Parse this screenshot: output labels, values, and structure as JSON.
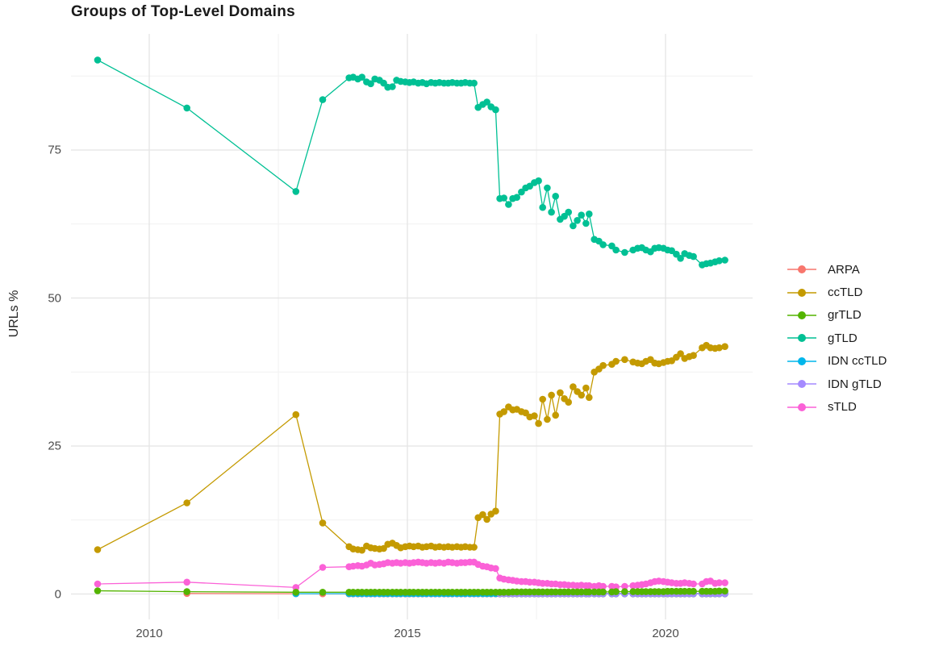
{
  "chart_data": {
    "type": "scatter",
    "title": "Groups of Top-Level Domains",
    "xlabel": "",
    "ylabel": "URLs %",
    "x_ticks": [
      "2010",
      "2015",
      "2020"
    ],
    "x_tick_values": [
      2010,
      2015,
      2020
    ],
    "x_minor_gridlines": [
      2012.5,
      2017.5
    ],
    "y_ticks": [
      "0",
      "25",
      "50",
      "75"
    ],
    "y_tick_values": [
      0,
      25,
      50,
      75
    ],
    "y_minor_gridlines": [
      12.5,
      37.5,
      62.5,
      87.5
    ],
    "xlim": [
      2008.48,
      2021.69
    ],
    "ylim": [
      -4.3,
      94.6
    ],
    "grid": true,
    "legend_position": "right",
    "style": {
      "background": "#ffffff",
      "grid_major_color": "#e4e4e4",
      "grid_minor_color": "#f1f1f1",
      "tick_label_color": "#4d4d4d",
      "title_color": "#1a1a1a",
      "axis_title_color": "#262626"
    },
    "dense_x": [
      2013.87,
      2013.95,
      2014.04,
      2014.12,
      2014.21,
      2014.29,
      2014.37,
      2014.46,
      2014.54,
      2014.62,
      2014.71,
      2014.79,
      2014.87,
      2014.96,
      2015.04,
      2015.12,
      2015.21,
      2015.29,
      2015.37,
      2015.46,
      2015.54,
      2015.62,
      2015.71,
      2015.79,
      2015.87,
      2015.96,
      2016.04,
      2016.12,
      2016.21,
      2016.29,
      2016.37,
      2016.46,
      2016.54,
      2016.62,
      2016.71,
      2016.79,
      2016.87,
      2016.96,
      2017.04,
      2017.12,
      2017.21,
      2017.29,
      2017.37,
      2017.46,
      2017.54,
      2017.62,
      2017.71,
      2017.79,
      2017.87,
      2017.96,
      2018.04,
      2018.12,
      2018.21,
      2018.29,
      2018.37,
      2018.46,
      2018.52,
      2018.62,
      2018.71,
      2018.79,
      2018.96,
      2019.04,
      2019.21,
      2019.37,
      2019.46,
      2019.54,
      2019.62,
      2019.71,
      2019.79,
      2019.87,
      2019.96,
      2020.04,
      2020.12,
      2020.21,
      2020.29,
      2020.37,
      2020.46,
      2020.54,
      2020.71,
      2020.79,
      2020.87,
      2020.96,
      2021.04,
      2021.15
    ],
    "series": [
      {
        "name": "ARPA",
        "color": "#F8766D",
        "sparse": [
          [
            2010.73,
            0.1
          ],
          [
            2012.84,
            0.05
          ],
          [
            2013.36,
            0.04
          ]
        ],
        "dense_y_const": 0.03
      },
      {
        "name": "ccTLD",
        "color": "#C49A00",
        "sparse": [
          [
            2009.0,
            7.5
          ],
          [
            2010.73,
            15.4
          ],
          [
            2012.84,
            30.3
          ],
          [
            2013.36,
            12.0
          ]
        ],
        "dense_y": [
          8.0,
          7.6,
          7.5,
          7.4,
          8.1,
          7.8,
          7.7,
          7.6,
          7.7,
          8.4,
          8.6,
          8.2,
          7.8,
          8.0,
          8.1,
          8.0,
          8.1,
          7.9,
          8.0,
          8.1,
          7.9,
          8.0,
          7.9,
          8.0,
          7.9,
          8.0,
          7.9,
          8.0,
          7.9,
          7.9,
          12.9,
          13.4,
          12.6,
          13.5,
          14.0,
          30.4,
          30.8,
          31.6,
          31.1,
          31.2,
          30.8,
          30.6,
          29.9,
          30.1,
          28.8,
          32.9,
          29.5,
          33.6,
          30.2,
          34.0,
          33.0,
          32.4,
          35.0,
          34.2,
          33.6,
          34.8,
          33.2,
          37.5,
          38.0,
          38.6,
          38.8,
          39.3,
          39.6,
          39.2,
          39.0,
          38.9,
          39.3,
          39.6,
          39.0,
          38.9,
          39.1,
          39.3,
          39.4,
          40.0,
          40.6,
          39.8,
          40.1,
          40.3,
          41.6,
          42.0,
          41.6,
          41.5,
          41.6,
          41.8
        ]
      },
      {
        "name": "grTLD",
        "color": "#53B400",
        "sparse": [
          [
            2009.0,
            0.55
          ],
          [
            2010.73,
            0.4
          ],
          [
            2012.84,
            0.3
          ],
          [
            2013.36,
            0.3
          ]
        ],
        "dense_y": [
          0.3,
          0.3,
          0.3,
          0.3,
          0.3,
          0.3,
          0.3,
          0.3,
          0.3,
          0.3,
          0.3,
          0.3,
          0.3,
          0.3,
          0.3,
          0.3,
          0.3,
          0.3,
          0.3,
          0.3,
          0.3,
          0.3,
          0.3,
          0.3,
          0.3,
          0.3,
          0.3,
          0.3,
          0.3,
          0.3,
          0.3,
          0.3,
          0.3,
          0.3,
          0.3,
          0.3,
          0.3,
          0.3,
          0.35,
          0.35,
          0.35,
          0.35,
          0.35,
          0.35,
          0.35,
          0.35,
          0.35,
          0.35,
          0.35,
          0.35,
          0.35,
          0.35,
          0.35,
          0.35,
          0.35,
          0.35,
          0.35,
          0.35,
          0.35,
          0.35,
          0.35,
          0.4,
          0.4,
          0.4,
          0.4,
          0.4,
          0.4,
          0.4,
          0.4,
          0.4,
          0.4,
          0.45,
          0.45,
          0.45,
          0.45,
          0.45,
          0.45,
          0.45,
          0.45,
          0.45,
          0.45,
          0.45,
          0.5,
          0.5
        ]
      },
      {
        "name": "gTLD",
        "color": "#00C094",
        "sparse": [
          [
            2009.0,
            90.2
          ],
          [
            2010.73,
            82.1
          ],
          [
            2012.84,
            68.0
          ],
          [
            2013.36,
            83.5
          ]
        ],
        "dense_y": [
          87.2,
          87.3,
          87.0,
          87.3,
          86.5,
          86.2,
          87.0,
          86.8,
          86.3,
          85.6,
          85.7,
          86.8,
          86.6,
          86.5,
          86.4,
          86.5,
          86.3,
          86.4,
          86.2,
          86.4,
          86.3,
          86.4,
          86.3,
          86.3,
          86.4,
          86.3,
          86.3,
          86.4,
          86.3,
          86.3,
          82.2,
          82.7,
          83.1,
          82.3,
          81.8,
          66.8,
          66.9,
          65.8,
          66.8,
          67.0,
          67.9,
          68.6,
          68.9,
          69.5,
          69.8,
          65.3,
          68.6,
          64.5,
          67.2,
          63.3,
          63.8,
          64.5,
          62.2,
          63.1,
          64.0,
          62.6,
          64.2,
          59.9,
          59.6,
          59.0,
          58.8,
          58.1,
          57.7,
          58.1,
          58.4,
          58.5,
          58.1,
          57.8,
          58.4,
          58.5,
          58.4,
          58.1,
          58.0,
          57.4,
          56.7,
          57.5,
          57.2,
          57.0,
          55.6,
          55.8,
          55.9,
          56.1,
          56.3,
          56.4
        ]
      },
      {
        "name": "IDN ccTLD",
        "color": "#00B6EB",
        "sparse": [
          [
            2012.84,
            0.05
          ]
        ],
        "dense_y_const": 0.05
      },
      {
        "name": "IDN gTLD",
        "color": "#A58AFF",
        "sparse": [],
        "dense_from": 2016.79,
        "dense_y_const": 0.1
      },
      {
        "name": "sTLD",
        "color": "#FB61D7",
        "sparse": [
          [
            2009.0,
            1.7
          ],
          [
            2010.73,
            2.0
          ],
          [
            2012.84,
            1.1
          ],
          [
            2013.36,
            4.5
          ]
        ],
        "dense_y": [
          4.6,
          4.7,
          4.8,
          4.7,
          4.9,
          5.2,
          4.9,
          5.0,
          5.1,
          5.3,
          5.2,
          5.3,
          5.2,
          5.3,
          5.2,
          5.3,
          5.4,
          5.3,
          5.2,
          5.3,
          5.2,
          5.3,
          5.2,
          5.4,
          5.3,
          5.2,
          5.3,
          5.3,
          5.4,
          5.4,
          5.0,
          4.7,
          4.6,
          4.4,
          4.3,
          2.7,
          2.5,
          2.4,
          2.3,
          2.2,
          2.1,
          2.1,
          2.0,
          2.0,
          1.9,
          1.8,
          1.8,
          1.7,
          1.7,
          1.6,
          1.6,
          1.5,
          1.5,
          1.4,
          1.5,
          1.4,
          1.4,
          1.3,
          1.4,
          1.3,
          1.3,
          1.2,
          1.3,
          1.4,
          1.5,
          1.6,
          1.7,
          1.9,
          2.1,
          2.2,
          2.1,
          2.0,
          1.9,
          1.8,
          1.8,
          1.9,
          1.8,
          1.7,
          1.7,
          2.1,
          2.2,
          1.8,
          1.9,
          1.9
        ]
      }
    ],
    "draw_order": [
      "ARPA",
      "IDN ccTLD",
      "IDN gTLD",
      "sTLD",
      "ccTLD",
      "gTLD",
      "grTLD"
    ],
    "legend_order": [
      "ARPA",
      "ccTLD",
      "grTLD",
      "gTLD",
      "IDN ccTLD",
      "IDN gTLD",
      "sTLD"
    ]
  }
}
